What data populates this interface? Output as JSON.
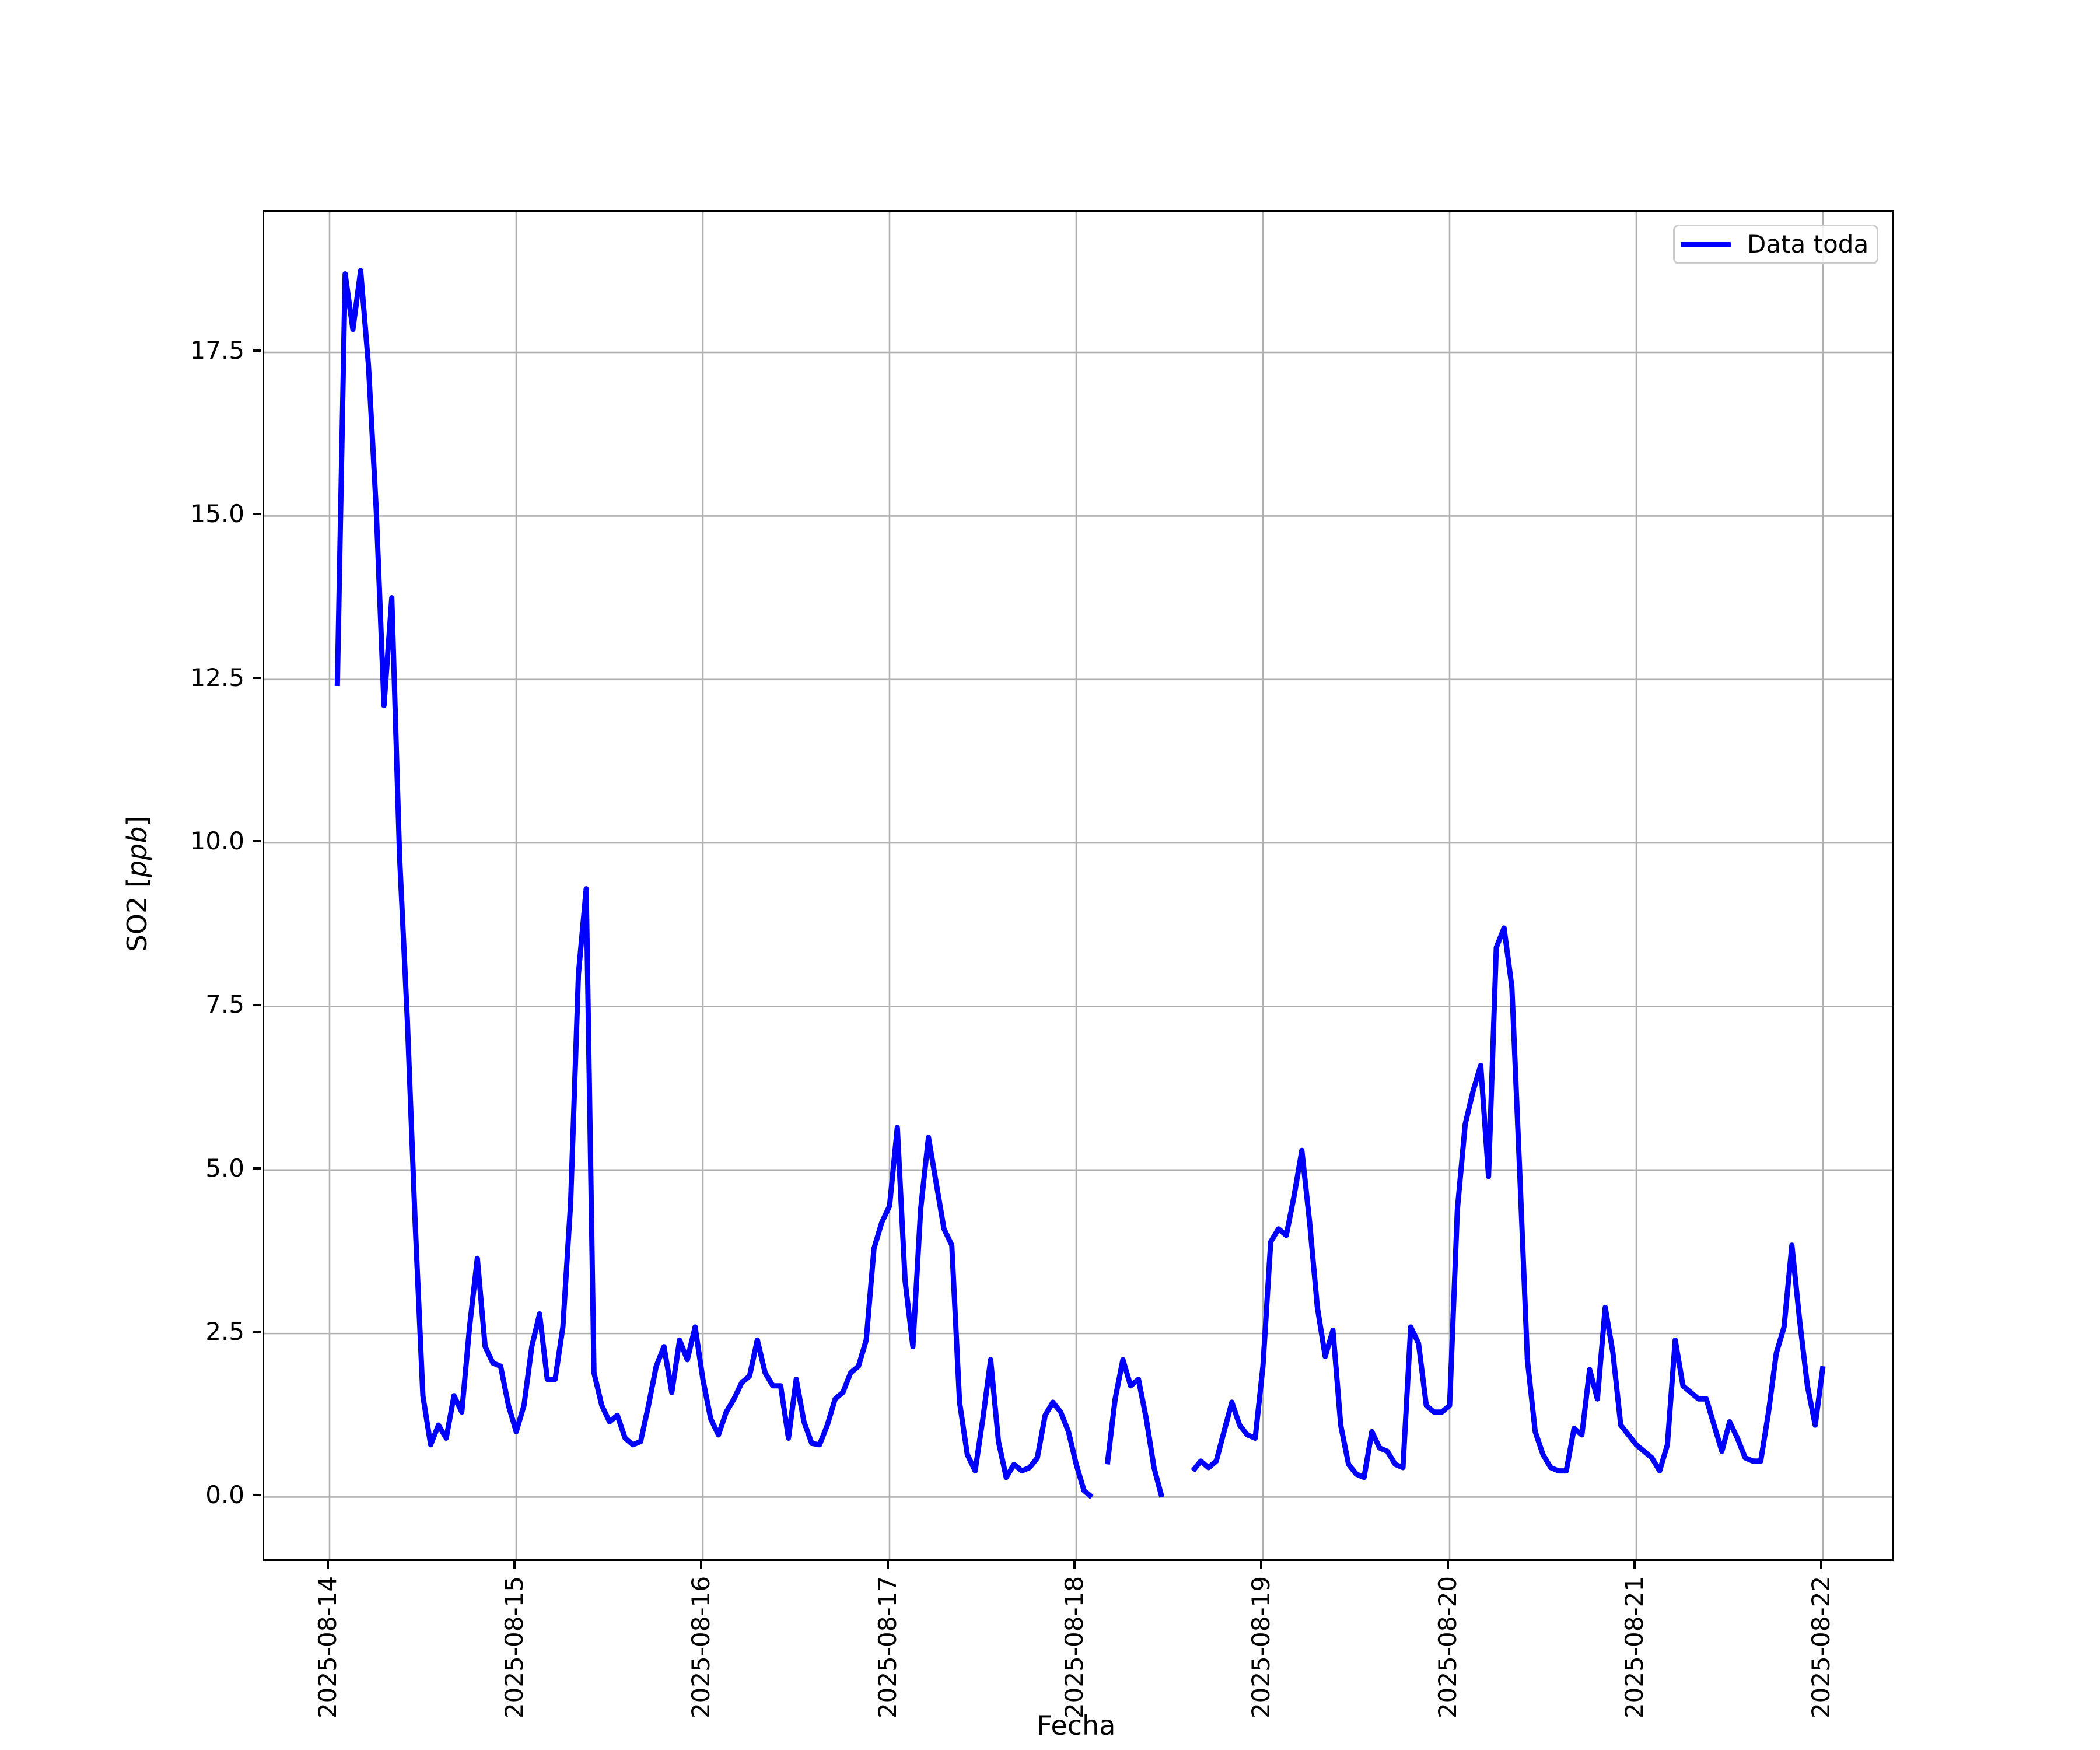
{
  "figure": {
    "background_color": "#ffffff",
    "plot_background_color": "#ffffff",
    "grid_color": "#b0b0b0",
    "spine_color": "#000000",
    "text_color": "#000000"
  },
  "chart_data": {
    "type": "line",
    "title": "",
    "xlabel": "Fecha",
    "ylabel": "SO2 [ppb]",
    "ylabel_parts": {
      "prefix": "SO2 [",
      "italic": "ppb",
      "suffix": "]"
    },
    "grid": true,
    "legend_position": "upper right",
    "legend": [
      {
        "label": "Data toda",
        "color": "#0000ff"
      }
    ],
    "y_ticks": [
      0.0,
      2.5,
      5.0,
      7.5,
      10.0,
      12.5,
      15.0,
      17.5
    ],
    "y_tick_labels": [
      "0.0",
      "2.5",
      "5.0",
      "7.5",
      "10.0",
      "12.5",
      "15.0",
      "17.5"
    ],
    "x_tick_hours": [
      0,
      24,
      48,
      72,
      96,
      120,
      144,
      168,
      192
    ],
    "x_tick_labels": [
      "2025-08-14",
      "2025-08-15",
      "2025-08-16",
      "2025-08-17",
      "2025-08-18",
      "2025-08-19",
      "2025-08-20",
      "2025-08-21",
      "2025-08-22"
    ],
    "ylim": [
      -0.95,
      19.65
    ],
    "xlim_hours": [
      -8.4,
      200.85
    ],
    "series": [
      {
        "name": "Data toda",
        "color": "#0000ff",
        "line_width": 9,
        "x_start": "2025-08-14 01:00",
        "interval_hours": 1,
        "start_hour_offset": 1,
        "values": [
          12.4,
          18.7,
          17.85,
          18.75,
          17.3,
          15.1,
          12.1,
          13.75,
          9.8,
          7.3,
          4.2,
          1.55,
          0.8,
          1.1,
          0.9,
          1.55,
          1.3,
          2.6,
          3.65,
          2.3,
          2.05,
          2.0,
          1.4,
          1.0,
          1.4,
          2.3,
          2.8,
          1.8,
          1.8,
          2.6,
          4.5,
          8.0,
          9.3,
          1.9,
          1.4,
          1.15,
          1.25,
          0.9,
          0.8,
          0.85,
          1.4,
          2.0,
          2.3,
          1.6,
          2.4,
          2.1,
          2.6,
          1.8,
          1.2,
          0.95,
          1.3,
          1.5,
          1.75,
          1.85,
          2.4,
          1.9,
          1.7,
          1.7,
          0.9,
          1.8,
          1.15,
          0.82,
          0.8,
          1.1,
          1.5,
          1.6,
          1.9,
          2.0,
          2.4,
          3.8,
          4.2,
          4.45,
          5.65,
          3.3,
          2.3,
          4.4,
          5.5,
          4.8,
          4.1,
          3.85,
          1.45,
          0.65,
          0.4,
          1.2,
          2.1,
          0.85,
          0.3,
          0.5,
          0.4,
          0.45,
          0.6,
          1.25,
          1.45,
          1.3,
          1.0,
          0.5,
          0.1,
          0.0,
          null,
          0.5,
          1.5,
          2.1,
          1.7,
          1.8,
          1.2,
          0.45,
          0.0,
          null,
          null,
          null,
          0.4,
          0.55,
          0.45,
          0.55,
          1.0,
          1.45,
          1.1,
          0.95,
          0.9,
          2.0,
          3.9,
          4.1,
          4.0,
          4.6,
          5.3,
          4.2,
          2.9,
          2.15,
          2.55,
          1.1,
          0.5,
          0.35,
          0.3,
          1.0,
          0.75,
          0.7,
          0.5,
          0.45,
          2.6,
          2.35,
          1.4,
          1.3,
          1.3,
          1.4,
          4.4,
          5.7,
          6.2,
          6.6,
          4.9,
          8.4,
          8.7,
          7.8,
          5.0,
          2.1,
          1.0,
          0.65,
          0.45,
          0.4,
          0.4,
          1.05,
          0.95,
          1.95,
          1.5,
          2.9,
          2.2,
          1.1,
          0.95,
          0.8,
          0.7,
          0.6,
          0.4,
          0.8,
          2.4,
          1.7,
          1.6,
          1.5,
          1.5,
          1.1,
          0.7,
          1.15,
          0.9,
          0.6,
          0.55,
          0.55,
          1.3,
          2.2,
          2.6,
          3.85,
          2.7,
          1.7,
          1.1,
          2.0
        ]
      }
    ]
  }
}
